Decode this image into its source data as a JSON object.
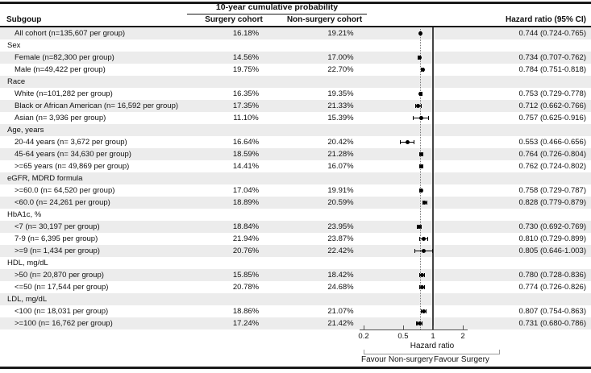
{
  "header": {
    "subgroup": "Subgoup",
    "span_header": "10-year cumulative probability",
    "surgery": "Surgery cohort",
    "nonsurgery": "Non-surgery cohort",
    "hazard": "Hazard ratio (95% CI)"
  },
  "chart_data": {
    "type": "forest-plot-table",
    "axis": {
      "label": "Hazard ratio",
      "scale": "log",
      "ticks": [
        0.2,
        0.5,
        1,
        2
      ],
      "range": [
        0.2,
        2
      ],
      "reference_line": 1
    },
    "overall_hr": 0.744,
    "footer_labels": {
      "left": "Favour Non-surgery",
      "right": "Favour Surgery"
    },
    "rows": [
      {
        "kind": "data",
        "label": "All cohort (n=135,607 per group)",
        "surgery": "16.18%",
        "nonsurgery": "19.21%",
        "hr": 0.744,
        "ci": [
          0.724,
          0.765
        ],
        "hr_text": "0.744 (0.724-0.765)"
      },
      {
        "kind": "group",
        "label": "Sex"
      },
      {
        "kind": "data",
        "label": "Female (n=82,300 per group)",
        "surgery": "14.56%",
        "nonsurgery": "17.00%",
        "hr": 0.734,
        "ci": [
          0.707,
          0.762
        ],
        "hr_text": "0.734 (0.707-0.762)"
      },
      {
        "kind": "data",
        "label": "Male (n=49,422 per group)",
        "surgery": "19.75%",
        "nonsurgery": "22.70%",
        "hr": 0.784,
        "ci": [
          0.751,
          0.818
        ],
        "hr_text": "0.784 (0.751-0.818)"
      },
      {
        "kind": "group",
        "label": "Race"
      },
      {
        "kind": "data",
        "label": "White (n=101,282 per group)",
        "surgery": "16.35%",
        "nonsurgery": "19.35%",
        "hr": 0.753,
        "ci": [
          0.729,
          0.778
        ],
        "hr_text": "0.753 (0.729-0.778)"
      },
      {
        "kind": "data",
        "label": "Black or African American (n= 16,592 per group)",
        "surgery": "17.35%",
        "nonsurgery": "21.33%",
        "hr": 0.712,
        "ci": [
          0.662,
          0.766
        ],
        "hr_text": "0.712 (0.662-0.766)"
      },
      {
        "kind": "data",
        "label": "Asian (n= 3,936 per group)",
        "surgery": "11.10%",
        "nonsurgery": "15.39%",
        "hr": 0.757,
        "ci": [
          0.625,
          0.916
        ],
        "hr_text": "0.757 (0.625-0.916)"
      },
      {
        "kind": "group",
        "label": "Age, years"
      },
      {
        "kind": "data",
        "label": "20-44 years (n= 3,672 per group)",
        "surgery": "16.64%",
        "nonsurgery": "20.42%",
        "hr": 0.553,
        "ci": [
          0.466,
          0.656
        ],
        "hr_text": "0.553 (0.466-0.656)"
      },
      {
        "kind": "data",
        "label": "45-64 years (n= 34,630 per group)",
        "surgery": "18.59%",
        "nonsurgery": "21.28%",
        "hr": 0.764,
        "ci": [
          0.726,
          0.804
        ],
        "hr_text": "0.764 (0.726-0.804)"
      },
      {
        "kind": "data",
        "label": ">=65 years (n= 49,869 per group)",
        "surgery": "14.41%",
        "nonsurgery": "16.07%",
        "hr": 0.762,
        "ci": [
          0.724,
          0.802
        ],
        "hr_text": "0.762 (0.724-0.802)"
      },
      {
        "kind": "group",
        "label": "eGFR, MDRD formula"
      },
      {
        "kind": "data",
        "label": ">=60.0 (n= 64,520 per group)",
        "surgery": "17.04%",
        "nonsurgery": "19.91%",
        "hr": 0.758,
        "ci": [
          0.729,
          0.787
        ],
        "hr_text": "0.758 (0.729-0.787)"
      },
      {
        "kind": "data",
        "label": "<60.0 (n= 24,261 per group)",
        "surgery": "18.89%",
        "nonsurgery": "20.59%",
        "hr": 0.828,
        "ci": [
          0.779,
          0.879
        ],
        "hr_text": "0.828 (0.779-0.879)"
      },
      {
        "kind": "group",
        "label": "HbA1c, %"
      },
      {
        "kind": "data",
        "label": "<7 (n= 30,197 per group)",
        "surgery": "18.84%",
        "nonsurgery": "23.95%",
        "hr": 0.73,
        "ci": [
          0.692,
          0.769
        ],
        "hr_text": "0.730 (0.692-0.769)"
      },
      {
        "kind": "data",
        "label": "7-9 (n= 6,395 per group)",
        "surgery": "21.94%",
        "nonsurgery": "23.87%",
        "hr": 0.81,
        "ci": [
          0.729,
          0.899
        ],
        "hr_text": "0.810 (0.729-0.899)"
      },
      {
        "kind": "data",
        "label": ">=9 (n= 1,434 per group)",
        "surgery": "20.76%",
        "nonsurgery": "22.42%",
        "hr": 0.805,
        "ci": [
          0.646,
          1.003
        ],
        "hr_text": "0.805 (0.646-1.003)"
      },
      {
        "kind": "group",
        "label": "HDL, mg/dL"
      },
      {
        "kind": "data",
        "label": ">50 (n= 20,870 per group)",
        "surgery": "15.85%",
        "nonsurgery": "18.42%",
        "hr": 0.78,
        "ci": [
          0.728,
          0.836
        ],
        "hr_text": "0.780 (0.728-0.836)"
      },
      {
        "kind": "data",
        "label": "<=50 (n= 17,544 per group)",
        "surgery": "20.78%",
        "nonsurgery": "24.68%",
        "hr": 0.774,
        "ci": [
          0.726,
          0.826
        ],
        "hr_text": "0.774 (0.726-0.826)"
      },
      {
        "kind": "group",
        "label": "LDL, mg/dL"
      },
      {
        "kind": "data",
        "label": "<100 (n= 18,031 per group)",
        "surgery": "18.86%",
        "nonsurgery": "21.07%",
        "hr": 0.807,
        "ci": [
          0.754,
          0.863
        ],
        "hr_text": "0.807 (0.754-0.863)"
      },
      {
        "kind": "data",
        "label": ">=100 (n= 16,762 per group)",
        "surgery": "17.24%",
        "nonsurgery": "21.42%",
        "hr": 0.731,
        "ci": [
          0.68,
          0.786
        ],
        "hr_text": "0.731 (0.680-0.786)"
      }
    ]
  }
}
